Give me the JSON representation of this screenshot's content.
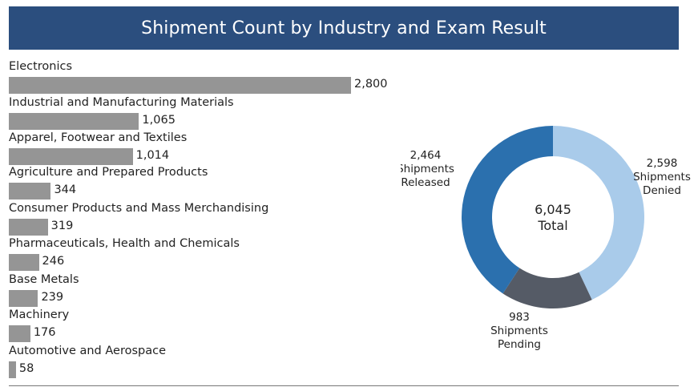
{
  "title": "Shipment Count by Industry and Exam Result",
  "chart_data": [
    {
      "type": "bar",
      "orientation": "horizontal",
      "categories": [
        "Electronics",
        "Industrial and Manufacturing Materials",
        "Apparel, Footwear and Textiles",
        "Agriculture and Prepared Products",
        "Consumer Products and Mass Merchandising",
        "Pharmaceuticals, Health and Chemicals",
        "Base Metals",
        "Machinery",
        "Automotive and Aerospace"
      ],
      "values": [
        2800,
        1065,
        1014,
        344,
        319,
        246,
        239,
        176,
        58
      ],
      "value_labels": [
        "2,800",
        "1,065",
        "1,014",
        "344",
        "319",
        "246",
        "239",
        "176",
        "58"
      ],
      "color": "#959595",
      "xlim": [
        0,
        2800
      ]
    },
    {
      "type": "pie",
      "style": "donut",
      "slices": [
        {
          "value": 2598,
          "value_label": "2,598",
          "label_lines": [
            "Shipments",
            "Denied"
          ],
          "color": "#a9cbea"
        },
        {
          "value": 983,
          "value_label": "983",
          "label_lines": [
            "Shipments",
            "Pending"
          ],
          "color": "#555b66"
        },
        {
          "value": 2464,
          "value_label": "2,464",
          "label_lines": [
            "Shipments",
            "Released"
          ],
          "color": "#2b70ae"
        }
      ],
      "center_value": "6,045",
      "center_label": "Total"
    }
  ]
}
